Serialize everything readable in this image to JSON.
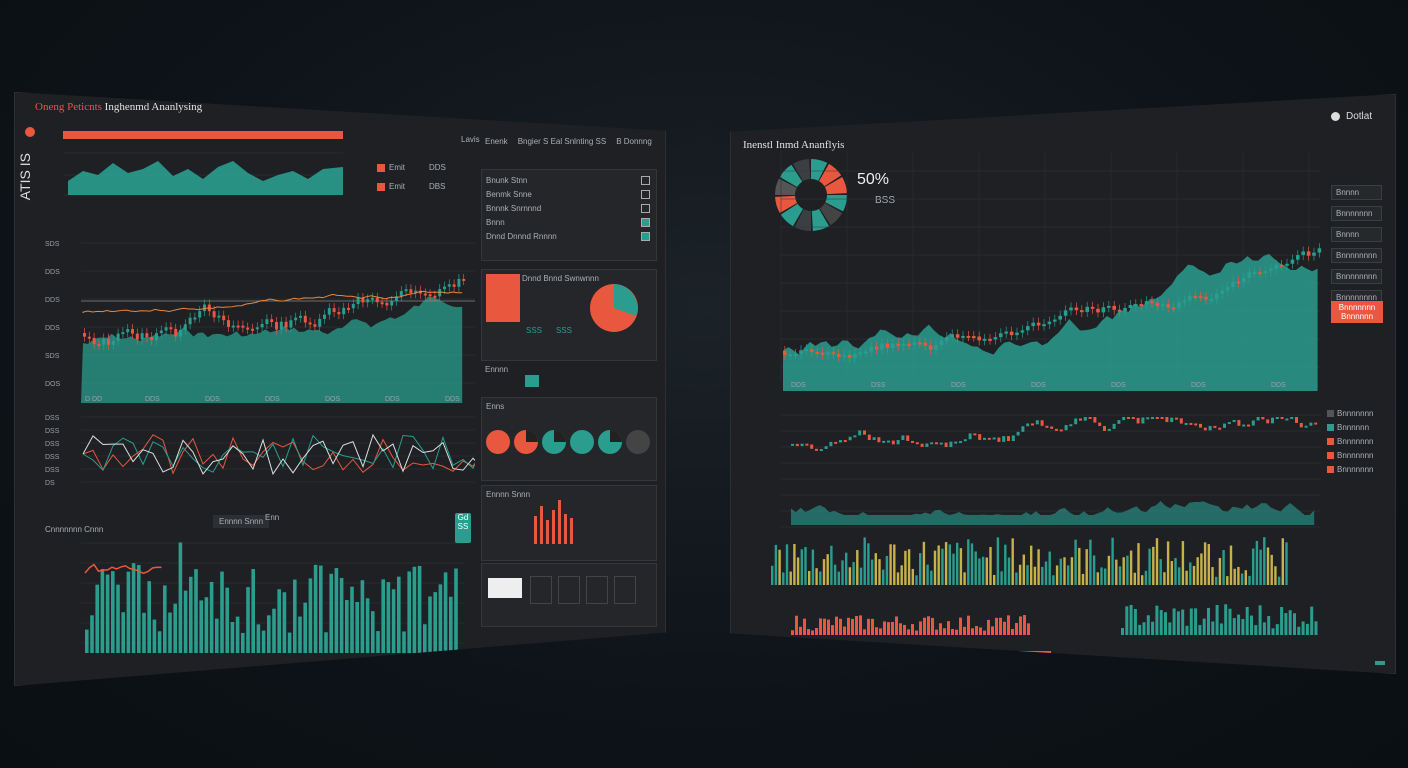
{
  "left": {
    "title": "Oneng Peticnts",
    "subtitle": "Inghenmd Ananlysing",
    "vertical_label": "ATIS IS",
    "legend_items": [
      "Emit",
      "Emit"
    ],
    "legend_values": [
      "DDS",
      "DBS"
    ],
    "toolbar_label": "Lavis",
    "right_header": [
      "Enenk",
      "Bngier S Eal Snlnting SS",
      "B Donnng"
    ],
    "list_items": [
      "Bnunk Stnn",
      "Benmk Snne",
      "Bnnnk Snrnnnd",
      "Bnnn",
      "Dnnd Dnnnd Rnnnn"
    ],
    "mini_header": "Dnnd Bnnd Swnwnnn",
    "mini_values": [
      "SSS",
      "SSS"
    ],
    "donut_title": "Enns",
    "mid_section_label": "Ennnn",
    "bottom_panel_title": "Ennnn Snnn",
    "bar_section_title": "Cnnnnnnn Cnnn",
    "bar_tabs": [
      "Ennnn Snnn",
      "Enn"
    ],
    "axis_ticks_main": [
      "SDS",
      "DDS",
      "DDS",
      "DDS",
      "SDS",
      "DOS"
    ],
    "axis_ticks_lower": [
      "DSS",
      "DSS",
      "DSS",
      "DSS",
      "DSS",
      "DS"
    ],
    "x_ticks": [
      "D DD",
      "DDS",
      "DDS",
      "DDS",
      "DOS",
      "DDS",
      "DDS"
    ],
    "badge": "Gd",
    "badge_sub": "SS"
  },
  "right": {
    "title": "Inenstl Inmd Ananflyis",
    "top_right": "Dotlat",
    "percentage": "50%",
    "sub_value": "BSS",
    "side_buttons": [
      "Bnnnn",
      "Bnnnnnnn",
      "Bnnnn",
      "Bnnnnnnnn",
      "Bnnnnnnnn",
      "Bnnnnnnnn"
    ],
    "alert_button": [
      "Bnnnnnnn",
      "Bnnnnnn"
    ],
    "lower_side": [
      "Bnnnnnnn",
      "Bnnnnnn",
      "Bnnnnnnn",
      "Bnnnnnnn",
      "Bnnnnnnn"
    ],
    "x_ticks": [
      "DDS",
      "DSS",
      "DDS",
      "DDS",
      "DDS",
      "DDS",
      "DDS"
    ],
    "legend": "SSS"
  },
  "colors": {
    "teal": "#2a9d8f",
    "orange": "#e9573f",
    "olive": "#c7b24a",
    "dark_bg": "#1e2023"
  }
}
